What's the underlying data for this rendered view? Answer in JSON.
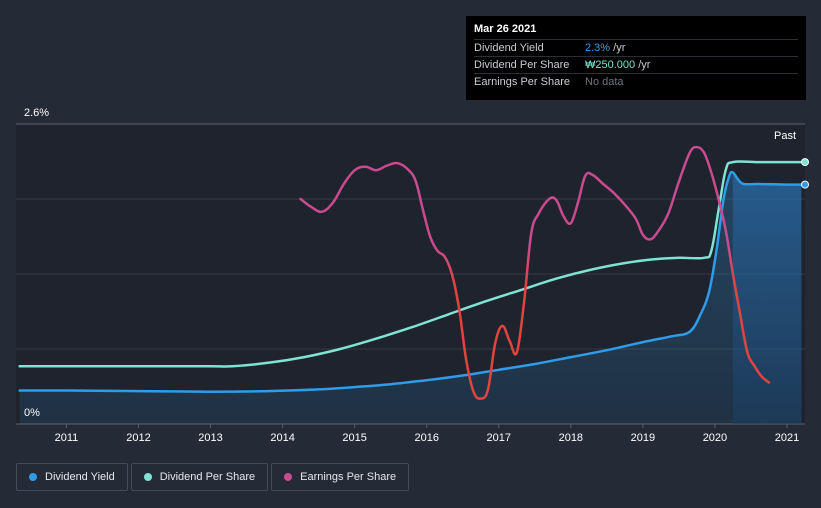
{
  "tooltip": {
    "date": "Mar 26 2021",
    "rows": [
      {
        "label": "Dividend Yield",
        "value": "2.3%",
        "unit": " /yr"
      },
      {
        "label": "Dividend Per Share",
        "value": "₩250.000",
        "unit": " /yr"
      },
      {
        "label": "Earnings Per Share",
        "value": "No data",
        "unit": ""
      }
    ]
  },
  "legend": [
    {
      "label": "Dividend Yield",
      "color": "#2f9ce8"
    },
    {
      "label": "Dividend Per Share",
      "color": "#7ee3d2"
    },
    {
      "label": "Earnings Per Share",
      "color": "#c94a8f"
    }
  ],
  "chart_data": {
    "type": "line",
    "title": "",
    "xlabel": "",
    "ylabel": "",
    "ylim": [
      0,
      2.6
    ],
    "y_tick_labels": [
      "0%",
      "2.6%"
    ],
    "x_tick_labels": [
      "2011",
      "2012",
      "2013",
      "2014",
      "2015",
      "2016",
      "2017",
      "2018",
      "2019",
      "2020",
      "2021"
    ],
    "xlim": [
      2010.3,
      2021.25
    ],
    "past_label": "Past",
    "series": [
      {
        "name": "Dividend Yield",
        "color": "#2f9ce8",
        "area": true,
        "points": [
          [
            2010.35,
            0.29
          ],
          [
            2011.0,
            0.29
          ],
          [
            2012.0,
            0.285
          ],
          [
            2013.0,
            0.28
          ],
          [
            2013.8,
            0.285
          ],
          [
            2014.5,
            0.3
          ],
          [
            2015.0,
            0.32
          ],
          [
            2015.5,
            0.345
          ],
          [
            2016.0,
            0.38
          ],
          [
            2016.5,
            0.42
          ],
          [
            2017.0,
            0.47
          ],
          [
            2017.5,
            0.52
          ],
          [
            2018.0,
            0.58
          ],
          [
            2018.5,
            0.64
          ],
          [
            2019.0,
            0.71
          ],
          [
            2019.4,
            0.76
          ],
          [
            2019.65,
            0.8
          ],
          [
            2019.8,
            0.95
          ],
          [
            2019.92,
            1.15
          ],
          [
            2020.02,
            1.5
          ],
          [
            2020.12,
            1.95
          ],
          [
            2020.2,
            2.15
          ],
          [
            2020.25,
            2.18
          ],
          [
            2020.32,
            2.12
          ],
          [
            2020.4,
            2.08
          ],
          [
            2020.6,
            2.08
          ],
          [
            2021.0,
            2.075
          ],
          [
            2021.2,
            2.075
          ]
        ]
      },
      {
        "name": "Dividend Per Share",
        "color": "#7ee3d2",
        "area": false,
        "points": [
          [
            2010.35,
            0.5
          ],
          [
            2011.0,
            0.5
          ],
          [
            2012.0,
            0.5
          ],
          [
            2013.0,
            0.5
          ],
          [
            2013.3,
            0.5
          ],
          [
            2013.8,
            0.53
          ],
          [
            2014.3,
            0.58
          ],
          [
            2014.8,
            0.65
          ],
          [
            2015.3,
            0.74
          ],
          [
            2015.8,
            0.84
          ],
          [
            2016.3,
            0.95
          ],
          [
            2016.8,
            1.06
          ],
          [
            2017.3,
            1.16
          ],
          [
            2017.8,
            1.26
          ],
          [
            2018.3,
            1.34
          ],
          [
            2018.8,
            1.4
          ],
          [
            2019.2,
            1.43
          ],
          [
            2019.5,
            1.44
          ],
          [
            2019.85,
            1.44
          ],
          [
            2019.95,
            1.5
          ],
          [
            2020.05,
            1.85
          ],
          [
            2020.15,
            2.2
          ],
          [
            2020.25,
            2.27
          ],
          [
            2020.6,
            2.27
          ],
          [
            2021.0,
            2.27
          ],
          [
            2021.2,
            2.27
          ]
        ]
      },
      {
        "name": "Earnings Per Share",
        "color": "#c94a8f",
        "area": false,
        "points": [
          [
            2014.25,
            1.95
          ],
          [
            2014.4,
            1.88
          ],
          [
            2014.55,
            1.84
          ],
          [
            2014.7,
            1.92
          ],
          [
            2014.85,
            2.08
          ],
          [
            2015.0,
            2.2
          ],
          [
            2015.15,
            2.23
          ],
          [
            2015.3,
            2.2
          ],
          [
            2015.45,
            2.24
          ],
          [
            2015.6,
            2.26
          ],
          [
            2015.75,
            2.2
          ],
          [
            2015.85,
            2.1
          ],
          [
            2015.95,
            1.85
          ],
          [
            2016.05,
            1.62
          ],
          [
            2016.15,
            1.5
          ],
          [
            2016.25,
            1.45
          ],
          [
            2016.35,
            1.3
          ],
          [
            2016.45,
            1.0
          ],
          [
            2016.55,
            0.55
          ],
          [
            2016.65,
            0.28
          ],
          [
            2016.75,
            0.22
          ],
          [
            2016.85,
            0.3
          ],
          [
            2016.95,
            0.7
          ],
          [
            2017.05,
            0.85
          ],
          [
            2017.15,
            0.72
          ],
          [
            2017.25,
            0.62
          ],
          [
            2017.35,
            1.05
          ],
          [
            2017.45,
            1.65
          ],
          [
            2017.55,
            1.82
          ],
          [
            2017.7,
            1.95
          ],
          [
            2017.8,
            1.94
          ],
          [
            2017.9,
            1.8
          ],
          [
            2018.0,
            1.74
          ],
          [
            2018.1,
            1.92
          ],
          [
            2018.2,
            2.15
          ],
          [
            2018.3,
            2.16
          ],
          [
            2018.45,
            2.08
          ],
          [
            2018.6,
            2.0
          ],
          [
            2018.75,
            1.9
          ],
          [
            2018.9,
            1.78
          ],
          [
            2019.0,
            1.64
          ],
          [
            2019.1,
            1.6
          ],
          [
            2019.2,
            1.66
          ],
          [
            2019.35,
            1.82
          ],
          [
            2019.5,
            2.1
          ],
          [
            2019.65,
            2.35
          ],
          [
            2019.75,
            2.4
          ],
          [
            2019.85,
            2.35
          ],
          [
            2019.95,
            2.18
          ],
          [
            2020.05,
            1.95
          ],
          [
            2020.15,
            1.68
          ],
          [
            2020.25,
            1.3
          ],
          [
            2020.35,
            0.95
          ],
          [
            2020.45,
            0.62
          ],
          [
            2020.55,
            0.5
          ],
          [
            2020.65,
            0.41
          ],
          [
            2020.75,
            0.36
          ]
        ]
      }
    ]
  }
}
